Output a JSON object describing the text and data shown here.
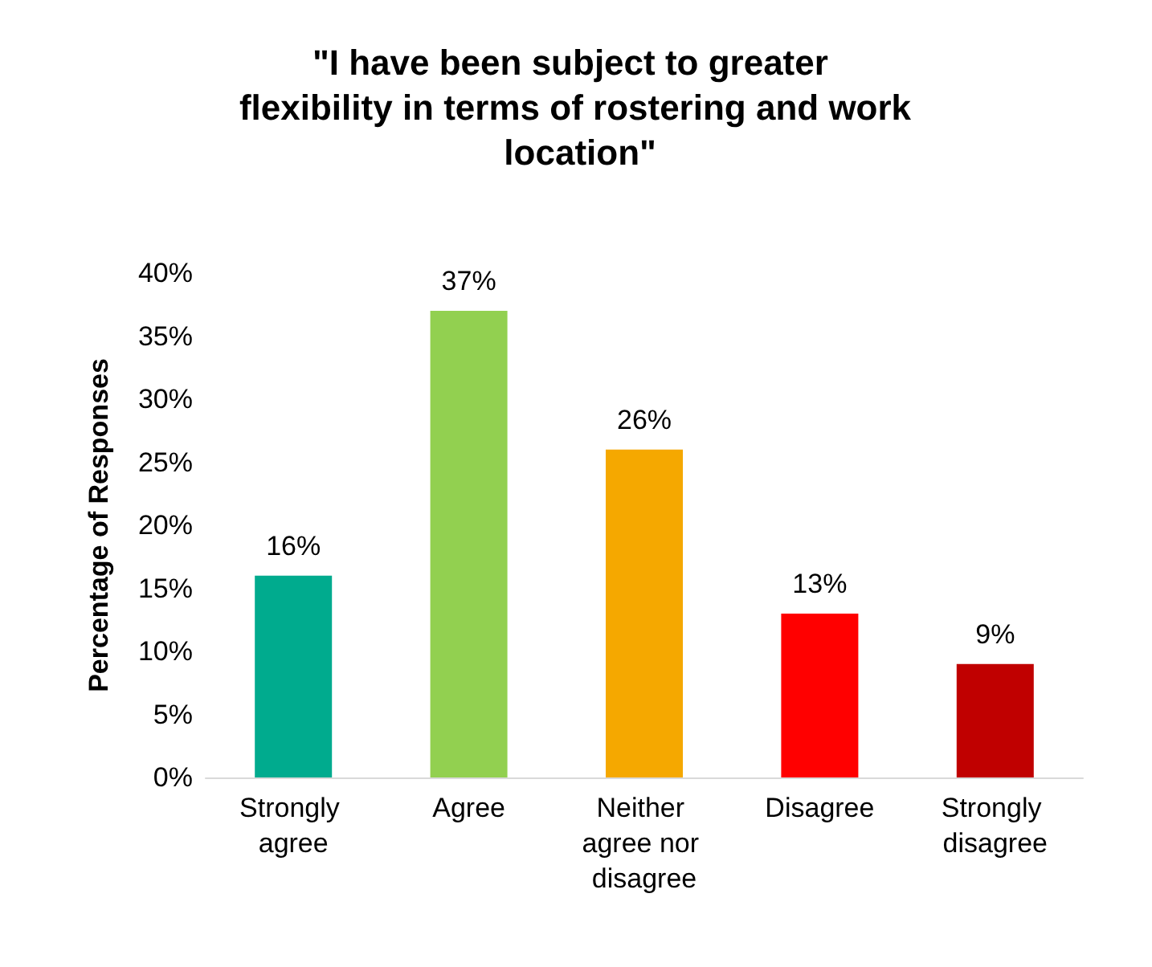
{
  "chart_data": {
    "type": "bar",
    "title": "\"I have been subject to greater flexibility in terms of rostering and work location\"",
    "ylabel": "Percentage of Responses",
    "categories": [
      "Strongly agree",
      "Agree",
      "Neither agree nor disagree",
      "Disagree",
      "Strongly disagree"
    ],
    "values": [
      16,
      37,
      26,
      13,
      9
    ],
    "colors": [
      "#00ab8e",
      "#92d050",
      "#f5a800",
      "#ff0000",
      "#c00000"
    ],
    "value_labels": [
      "16%",
      "37%",
      "26%",
      "13%",
      "9%"
    ],
    "ylim": [
      0,
      40
    ],
    "yticks": [
      {
        "value": 0,
        "label": "0%"
      },
      {
        "value": 5,
        "label": "5%"
      },
      {
        "value": 10,
        "label": "10%"
      },
      {
        "value": 15,
        "label": "15%"
      },
      {
        "value": 20,
        "label": "20%"
      },
      {
        "value": 25,
        "label": "25%"
      },
      {
        "value": 30,
        "label": "30%"
      },
      {
        "value": 35,
        "label": "35%"
      },
      {
        "value": 40,
        "label": "40%"
      }
    ],
    "grid": false
  }
}
